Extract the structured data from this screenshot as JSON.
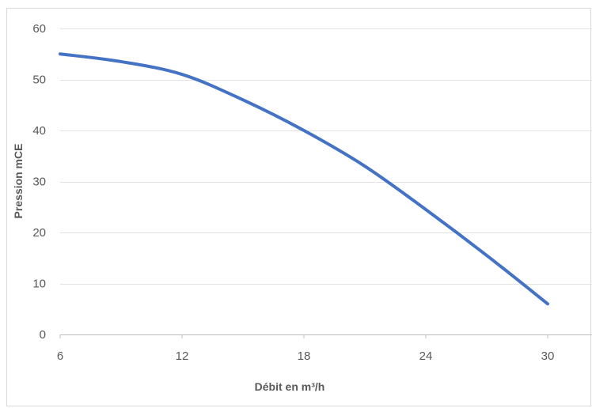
{
  "chart_data": {
    "type": "line",
    "title": "",
    "xlabel": "Débit en m³/h",
    "ylabel": "Pression mCE",
    "x_ticks": [
      6,
      12,
      18,
      24,
      30
    ],
    "y_ticks": [
      0,
      10,
      20,
      30,
      40,
      50,
      60
    ],
    "xlim": [
      6,
      30
    ],
    "ylim": [
      0,
      60
    ],
    "grid": "horizontal",
    "legend": "none",
    "series": [
      {
        "color": "#4472C4",
        "x": [
          6,
          9,
          12,
          15,
          18,
          21,
          24,
          27,
          30
        ],
        "y": [
          55,
          53.5,
          51,
          46,
          40,
          33,
          24.5,
          15.5,
          6
        ]
      }
    ]
  }
}
